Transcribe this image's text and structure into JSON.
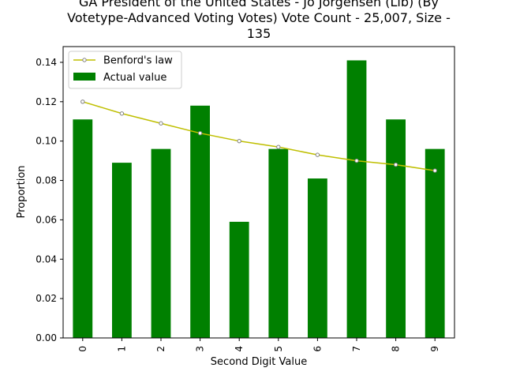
{
  "chart_data": {
    "type": "bar",
    "title_lines": [
      "GA President of the United States - Jo Jorgensen (Lib) (By",
      "Votetype-Advanced Voting Votes) Vote Count - 25,007, Size -",
      "135"
    ],
    "xlabel": "Second Digit Value",
    "ylabel": "Proportion",
    "categories": [
      "0",
      "1",
      "2",
      "3",
      "4",
      "5",
      "6",
      "7",
      "8",
      "9"
    ],
    "ylim": [
      0,
      0.148
    ],
    "yticks": [
      "0.00",
      "0.02",
      "0.04",
      "0.06",
      "0.08",
      "0.10",
      "0.12",
      "0.14"
    ],
    "legend_position": "upper-left",
    "series": [
      {
        "name": "Benford's law",
        "type": "line",
        "color": "#bfbf00",
        "values": [
          0.12,
          0.114,
          0.109,
          0.104,
          0.1,
          0.097,
          0.093,
          0.09,
          0.088,
          0.085
        ]
      },
      {
        "name": "Actual value",
        "type": "bar",
        "color": "#008000",
        "values": [
          0.111,
          0.089,
          0.096,
          0.118,
          0.059,
          0.096,
          0.081,
          0.141,
          0.111,
          0.096
        ]
      }
    ]
  }
}
